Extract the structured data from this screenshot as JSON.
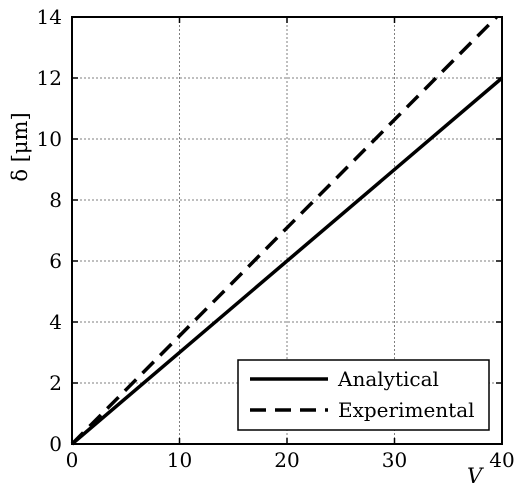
{
  "chart_data": {
    "type": "line",
    "title": "",
    "xlabel": "V",
    "ylabel": "δ [μm]",
    "xlim": [
      0,
      40
    ],
    "ylim": [
      0,
      14
    ],
    "x_ticks": [
      "0",
      "10",
      "20",
      "30",
      "40"
    ],
    "y_ticks": [
      "0",
      "2",
      "4",
      "6",
      "8",
      "10",
      "12",
      "14"
    ],
    "grid": true,
    "legend_position": "bottom-right",
    "series": [
      {
        "name": "Analytical",
        "style": "solid",
        "color": "#000000",
        "x": [
          0,
          40
        ],
        "y": [
          0,
          12
        ]
      },
      {
        "name": "Experimental",
        "style": "dashed",
        "color": "#000000",
        "x": [
          0,
          39.5
        ],
        "y": [
          0,
          14
        ]
      }
    ]
  }
}
